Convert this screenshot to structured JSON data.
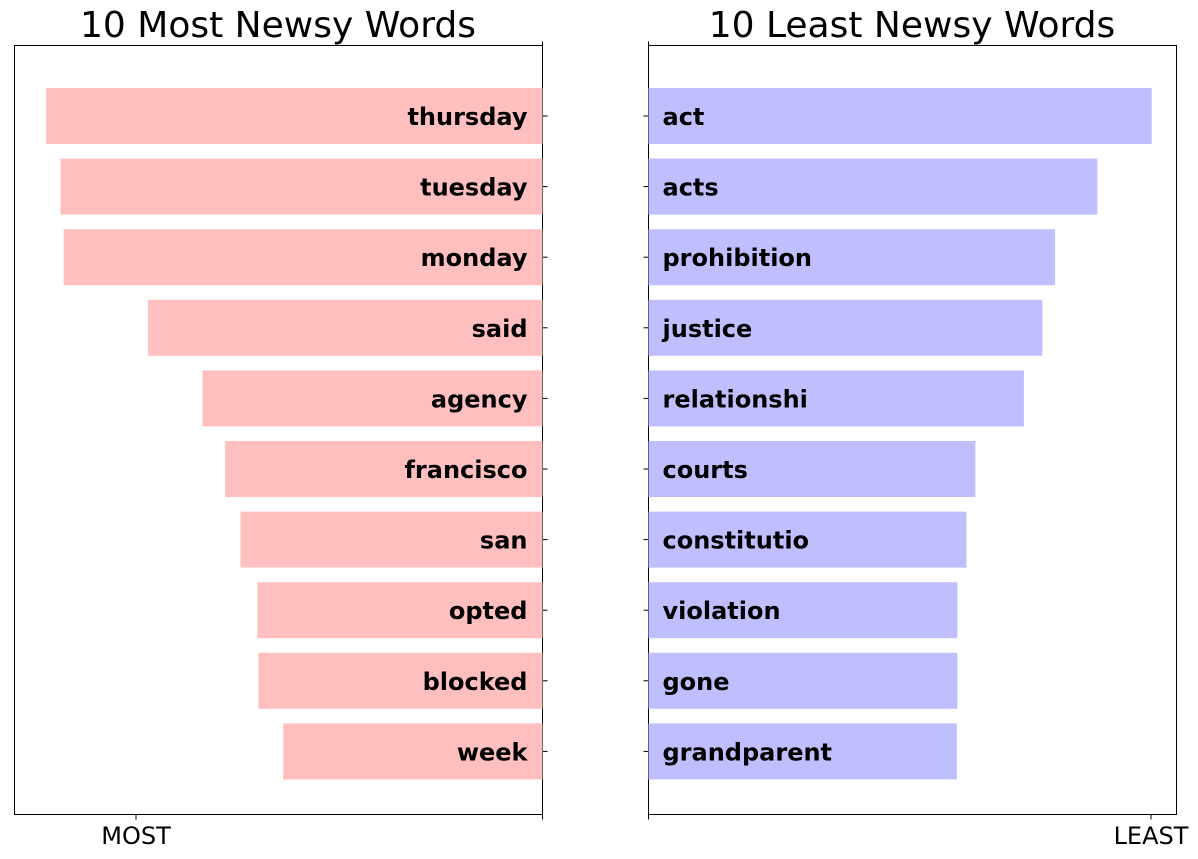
{
  "chart_data": [
    {
      "type": "bar",
      "orientation": "horizontal",
      "title": "10 Most Newsy Words",
      "categories": [
        "thursday",
        "tuesday",
        "monday",
        "said",
        "agency",
        "francisco",
        "san",
        "opted",
        "blocked",
        "week"
      ],
      "values": [
        0.94,
        0.913,
        0.907,
        0.747,
        0.644,
        0.601,
        0.572,
        0.54,
        0.538,
        0.491
      ],
      "value_scale": "relative (fraction of axis width)",
      "bar_direction": "right-to-left",
      "label_position": "inside-right",
      "xtick_labels": [
        "MOST"
      ],
      "color": "#ffbfbf",
      "grid": false
    },
    {
      "type": "bar",
      "orientation": "horizontal",
      "title": "10 Least Newsy Words",
      "categories": [
        "act",
        "acts",
        "prohibition",
        "justice",
        "relationshi",
        "courts",
        "constitutio",
        "violation",
        "gone",
        "grandparent"
      ],
      "values": [
        0.953,
        0.85,
        0.77,
        0.746,
        0.711,
        0.619,
        0.602,
        0.585,
        0.585,
        0.584
      ],
      "value_scale": "relative (fraction of axis width)",
      "bar_direction": "left-to-right",
      "label_position": "inside-left",
      "xtick_labels": [
        "LEAST"
      ],
      "color": "#bfbfff",
      "grid": false
    }
  ]
}
